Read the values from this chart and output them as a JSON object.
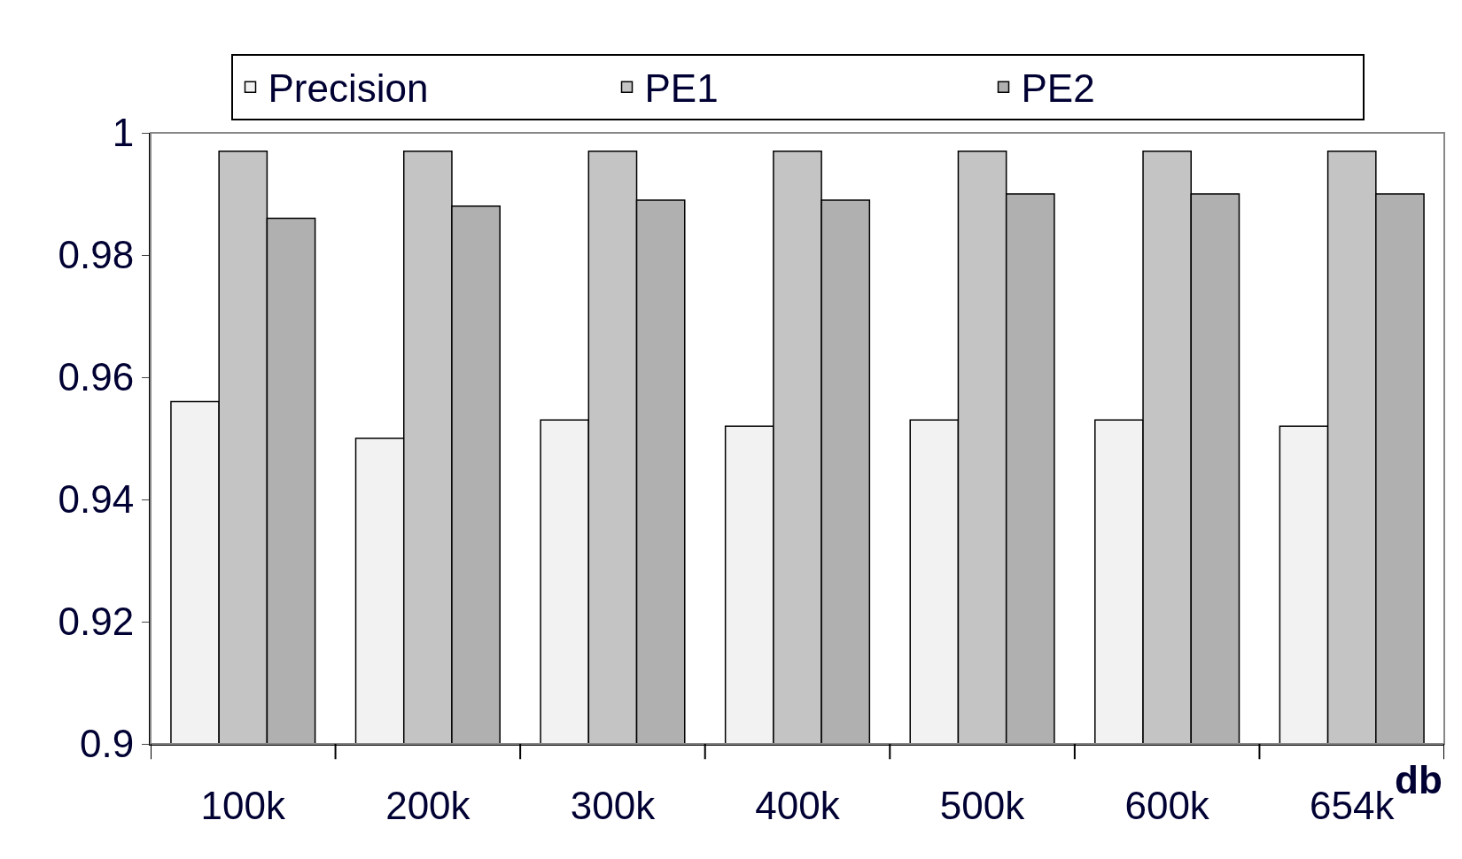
{
  "chart_data": {
    "type": "bar",
    "xlabel": "db",
    "categories": [
      "100k",
      "200k",
      "300k",
      "400k",
      "500k",
      "600k",
      "654k"
    ],
    "series": [
      {
        "name": "Precision",
        "color": "#f2f2f2",
        "values": [
          0.956,
          0.95,
          0.953,
          0.952,
          0.953,
          0.953,
          0.952
        ]
      },
      {
        "name": "PE1",
        "color": "#c4c4c4",
        "values": [
          0.997,
          0.997,
          0.997,
          0.997,
          0.997,
          0.997,
          0.997
        ]
      },
      {
        "name": "PE2",
        "color": "#b0b0b0",
        "values": [
          0.986,
          0.988,
          0.989,
          0.989,
          0.99,
          0.99,
          0.99
        ]
      }
    ],
    "ylim": [
      0.9,
      1
    ],
    "yticks": [
      0.9,
      0.92,
      0.94,
      0.96,
      0.98,
      1
    ],
    "grid": false,
    "legend": "top"
  }
}
